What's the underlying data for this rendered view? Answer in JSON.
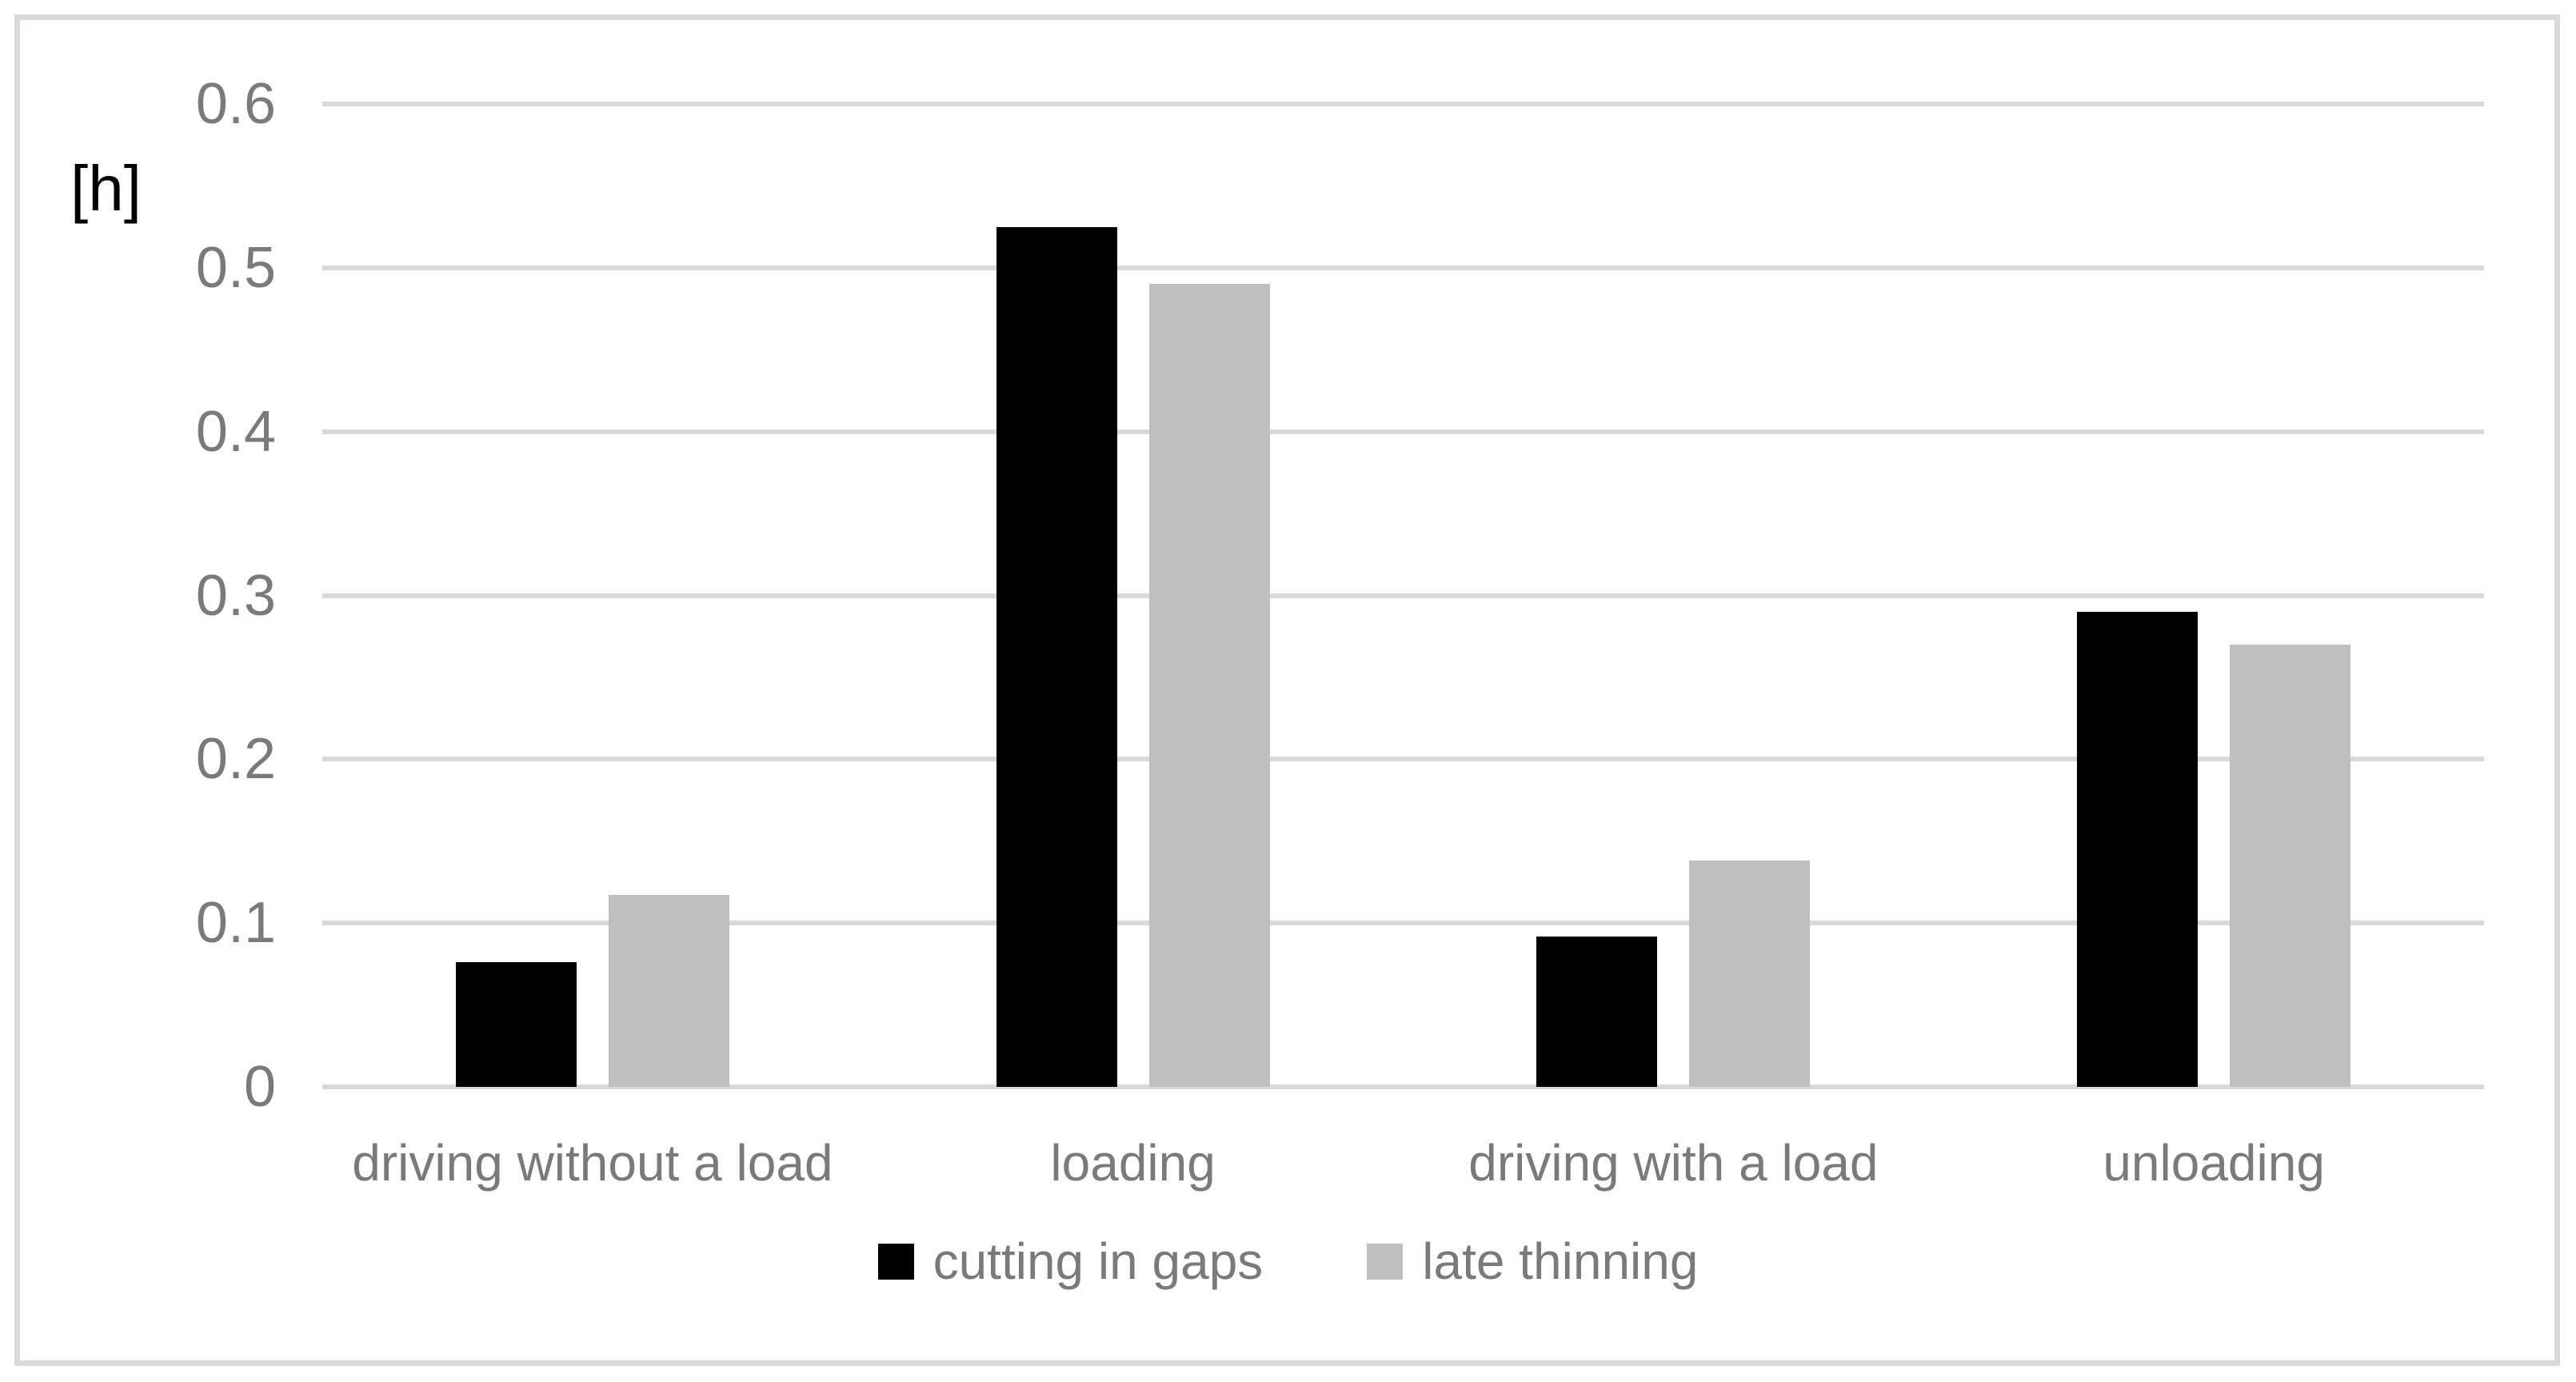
{
  "chart": {
    "figure_type": "grouped-column-chart",
    "background_color": "#ffffff",
    "frame_border_color": "#d9d9d9",
    "gridline_color": "#d9d9d9",
    "axis_text_color": "#7a7a7a",
    "unit_label_color": "#000000"
  },
  "chart_data": {
    "type": "bar",
    "title": "",
    "unit_label": "[h]",
    "categories": [
      "driving without a load",
      "loading",
      "driving with a load",
      "unloading"
    ],
    "series": [
      {
        "name": "cutting in gaps",
        "color": "#000000",
        "values": [
          0.076,
          0.525,
          0.092,
          0.29
        ]
      },
      {
        "name": "late thinning",
        "color": "#bfbfbf",
        "values": [
          0.117,
          0.49,
          0.138,
          0.27
        ]
      }
    ],
    "xlabel": "",
    "ylabel": "[h]",
    "ylim": [
      0,
      0.6
    ],
    "yticks": [
      0.6,
      0.5,
      0.4,
      0.3,
      0.2,
      0.1,
      0
    ],
    "ytick_labels": [
      "0.6",
      "0.5",
      "0.4",
      "0.3",
      "0.2",
      "0.1",
      "0"
    ],
    "grid": true,
    "legend_position": "bottom"
  }
}
